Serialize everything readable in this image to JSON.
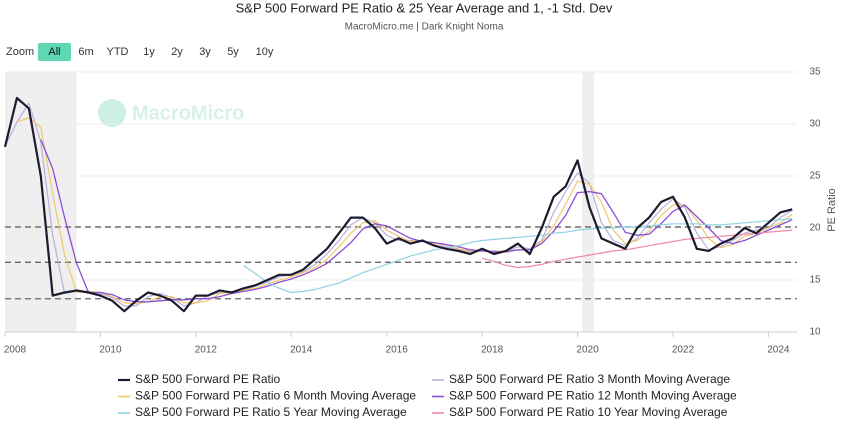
{
  "chart_data": {
    "type": "line",
    "title": "S&P 500 Forward PE Ratio & 25 Year Average and 1, -1 Std. Dev",
    "subtitle": "MacroMicro.me | Dark Knight Noma",
    "watermark": "MacroMicro",
    "zoom": {
      "label": "Zoom",
      "options": [
        "All",
        "6m",
        "YTD",
        "1y",
        "2y",
        "3y",
        "5y",
        "10y"
      ],
      "active": 0
    },
    "y_label": "PE Ratio",
    "xlim": [
      2008,
      2024.6
    ],
    "xticks": [
      2008,
      2010,
      2012,
      2014,
      2016,
      2018,
      2020,
      2022,
      2024
    ],
    "ylim": [
      10,
      35
    ],
    "yticks": [
      10,
      15,
      20,
      25,
      30,
      35
    ],
    "grid": true,
    "reference_lines": [
      20.1,
      16.7,
      13.2
    ],
    "shaded_regions": [
      [
        2008,
        2009.5
      ],
      [
        2020.1,
        2020.35
      ]
    ],
    "x": [
      2008,
      2008.25,
      2008.5,
      2008.75,
      2009,
      2009.25,
      2009.5,
      2009.75,
      2010,
      2010.25,
      2010.5,
      2010.75,
      2011,
      2011.25,
      2011.5,
      2011.75,
      2012,
      2012.25,
      2012.5,
      2012.75,
      2013,
      2013.25,
      2013.5,
      2013.75,
      2014,
      2014.25,
      2014.5,
      2014.75,
      2015,
      2015.25,
      2015.5,
      2015.75,
      2016,
      2016.25,
      2016.5,
      2016.75,
      2017,
      2017.25,
      2017.5,
      2017.75,
      2018,
      2018.25,
      2018.5,
      2018.75,
      2019,
      2019.25,
      2019.5,
      2019.75,
      2020,
      2020.25,
      2020.5,
      2020.75,
      2021,
      2021.25,
      2021.5,
      2021.75,
      2022,
      2022.25,
      2022.5,
      2022.75,
      2023,
      2023.25,
      2023.5,
      2023.75,
      2024,
      2024.25,
      2024.5
    ],
    "series": [
      {
        "name": "S&P 500 Forward PE Ratio",
        "color": "#1c1c2e",
        "width": 2.2,
        "values": [
          27.8,
          32.5,
          31.5,
          25,
          13.5,
          13.8,
          14,
          13.8,
          13.5,
          13,
          12,
          13,
          13.8,
          13.5,
          13,
          12,
          13.5,
          13.5,
          14,
          13.8,
          14.2,
          14.5,
          15,
          15.5,
          15.5,
          16,
          17,
          18,
          19.5,
          21,
          21,
          20,
          18.5,
          19,
          18.5,
          18.8,
          18.3,
          18,
          17.8,
          17.5,
          18,
          17.5,
          17.8,
          18.5,
          17.5,
          20,
          23,
          24,
          26.5,
          22,
          19,
          18.5,
          18,
          20,
          21,
          22.5,
          23,
          21,
          18,
          17.8,
          18.5,
          19,
          20,
          19.5,
          20.5,
          21.5,
          21.8
        ]
      },
      {
        "name": "S&P 500 Forward PE Ratio 3 Month Moving Average",
        "color": "#b9b0dc",
        "width": 1.2,
        "values": [
          27.8,
          30.2,
          32,
          28.3,
          19.3,
          13.7,
          13.9,
          13.9,
          13.7,
          13.3,
          12.5,
          12.5,
          13.4,
          13.7,
          13.3,
          12.5,
          12.8,
          13.5,
          13.8,
          13.9,
          14,
          14.4,
          14.8,
          15.3,
          15.5,
          15.8,
          16.5,
          17.5,
          18.8,
          20.3,
          21,
          20.5,
          19.3,
          18.8,
          18.8,
          18.7,
          18.6,
          18.2,
          17.9,
          17.7,
          17.8,
          17.8,
          17.7,
          18.2,
          18,
          18.8,
          21.5,
          23.5,
          25.3,
          24.3,
          20.5,
          18.8,
          18.3,
          19,
          20.5,
          21.8,
          22.8,
          22,
          19.5,
          17.9,
          18.2,
          18.8,
          19.5,
          19.8,
          20,
          21,
          21.7
        ]
      },
      {
        "name": "S&P 500 Forward PE Ratio 6 Month Moving Average",
        "color": "#f1c76c",
        "width": 1.2,
        "values": [
          null,
          30.2,
          30.6,
          29.7,
          23.3,
          17.4,
          13.8,
          13.9,
          13.8,
          13.4,
          12.8,
          12.7,
          12.9,
          13.4,
          13.4,
          12.8,
          12.8,
          13,
          13.7,
          13.8,
          14,
          14.2,
          14.6,
          15,
          15.3,
          15.7,
          16.2,
          17,
          18.2,
          19.5,
          20.5,
          20.7,
          19.8,
          19.2,
          18.7,
          18.8,
          18.5,
          18.4,
          18,
          17.8,
          17.8,
          17.7,
          17.8,
          17.9,
          17.9,
          18.7,
          20.2,
          22.3,
          24.5,
          24.2,
          22.5,
          19.8,
          18.5,
          18.8,
          19.7,
          21.2,
          22.2,
          22.2,
          20.7,
          19,
          18.1,
          18.4,
          19.2,
          19.5,
          20,
          20.5,
          21.3
        ]
      },
      {
        "name": "S&P 500 Forward PE Ratio 12 Month Moving Average",
        "color": "#8a4fd6",
        "width": 1.3,
        "values": [
          null,
          null,
          null,
          28.5,
          25.7,
          21,
          16.6,
          13.8,
          13.8,
          13.6,
          13.1,
          12.9,
          12.9,
          13,
          13.1,
          13.1,
          13.2,
          13.2,
          13.4,
          13.7,
          13.9,
          14.1,
          14.4,
          14.8,
          15.1,
          15.5,
          16,
          16.6,
          17.6,
          18.6,
          19.9,
          20.4,
          20.2,
          19.6,
          19,
          18.7,
          18.6,
          18.4,
          18.2,
          17.9,
          17.8,
          17.7,
          17.7,
          17.9,
          17.9,
          18.5,
          19.7,
          21.2,
          23.4,
          23.5,
          23.3,
          21.5,
          19.6,
          19.3,
          19.4,
          20.4,
          21.6,
          22.2,
          21.1,
          20,
          18.8,
          18.5,
          18.8,
          19.3,
          19.8,
          20.3,
          20.8
        ]
      },
      {
        "name": "S&P 500 Forward PE Ratio 5 Year Moving Average",
        "color": "#8fd0e6",
        "width": 1.2,
        "values": [
          null,
          null,
          null,
          null,
          null,
          null,
          null,
          null,
          null,
          null,
          null,
          null,
          null,
          null,
          null,
          null,
          null,
          null,
          null,
          null,
          16.4,
          15.6,
          14.8,
          14.2,
          13.8,
          13.9,
          14.1,
          14.4,
          14.7,
          15.2,
          15.7,
          16.1,
          16.5,
          16.9,
          17.3,
          17.6,
          17.9,
          18.1,
          18.3,
          18.6,
          18.8,
          18.9,
          19,
          19.1,
          19.2,
          19.3,
          19.5,
          19.6,
          19.8,
          19.9,
          20,
          20,
          20.1,
          20.1,
          20.2,
          20.3,
          20.4,
          20.4,
          20.4,
          20.3,
          20.3,
          20.4,
          20.5,
          20.6,
          20.7,
          20.8,
          20.9
        ]
      },
      {
        "name": "S&P 500 Forward PE Ratio 10 Year Moving Average",
        "color": "#ee8aa6",
        "width": 1.2,
        "values": [
          null,
          null,
          null,
          null,
          null,
          null,
          null,
          null,
          null,
          null,
          null,
          null,
          null,
          null,
          null,
          null,
          null,
          null,
          null,
          null,
          null,
          null,
          null,
          null,
          null,
          null,
          null,
          null,
          null,
          null,
          null,
          null,
          null,
          null,
          null,
          null,
          null,
          null,
          null,
          null,
          17.1,
          16.8,
          16.4,
          16.2,
          16.3,
          16.5,
          16.8,
          17,
          17.2,
          17.4,
          17.6,
          17.8,
          17.9,
          18.1,
          18.3,
          18.5,
          18.7,
          18.9,
          19,
          19.1,
          19.2,
          19.3,
          19.4,
          19.5,
          19.6,
          19.7,
          19.8
        ]
      }
    ]
  }
}
